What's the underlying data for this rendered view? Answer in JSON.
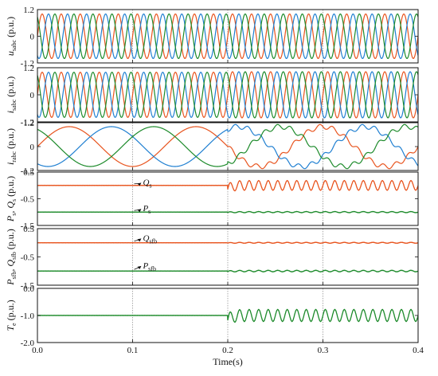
{
  "chart_data": {
    "type": "line",
    "xlabel": "Time(s)",
    "xlim": [
      0.0,
      0.4
    ],
    "xticks": [
      "0.0",
      "0.1",
      "0.2",
      "0.3",
      "0.4"
    ],
    "xtick_values": [
      0.0,
      0.1,
      0.2,
      0.3,
      0.4
    ],
    "grid": "vertical dotted lines at x ticks",
    "colors": {
      "phase_a": "#e8541e",
      "phase_b": "#1f7fd1",
      "phase_c": "#1c8a2a",
      "active": "#1c8a2a",
      "reactive": "#e8541e",
      "torque": "#1c8a2a"
    },
    "panels": [
      {
        "id": "uabc",
        "ylabel": {
          "main": "u",
          "sub": "sabc",
          "unit": " (p.u.)"
        },
        "ylim": [
          -1.2,
          1.2
        ],
        "yticks": [
          "1.2",
          "0",
          "-1.2"
        ],
        "ytick_values": [
          1.2,
          0,
          -1.2
        ],
        "series": [
          {
            "kind": "sine3",
            "amplitude": 1.0,
            "frequency_hz": 50,
            "phase_colors": [
              "phase_a",
              "phase_b",
              "phase_c"
            ]
          }
        ]
      },
      {
        "id": "isabc",
        "ylabel": {
          "main": "i",
          "sub": "sabc",
          "unit": " (p.u.)"
        },
        "ylim": [
          -1.2,
          1.2
        ],
        "yticks": [
          "1.2",
          "0",
          "-1.2"
        ],
        "ytick_values": [
          1.2,
          0,
          -1.2
        ],
        "series": [
          {
            "kind": "sine3",
            "amplitude": 1.0,
            "frequency_hz": 50,
            "amplitude_after": 1.02,
            "change_at": 0.2,
            "phase_colors": [
              "phase_a",
              "phase_b",
              "phase_c"
            ]
          }
        ]
      },
      {
        "id": "irabc",
        "ylabel": {
          "main": "i",
          "sub": "rabc",
          "unit": " (p.u.)"
        },
        "ylim": [
          -1.2,
          1.2
        ],
        "yticks": [
          "1.2",
          "0",
          "-1.2"
        ],
        "ytick_values": [
          1.2,
          0,
          -1.2
        ],
        "series": [
          {
            "kind": "sine3",
            "amplitude": 1.0,
            "frequency_hz": 7.5,
            "change_at": 0.2,
            "harmonic_amplitude_after": 0.12,
            "harmonic_order_after": 10,
            "phase_colors": [
              "phase_a",
              "phase_b",
              "phase_c"
            ]
          }
        ]
      },
      {
        "id": "psqs",
        "ylabel": {
          "main": "P",
          "sub": "s",
          "mid": " Q",
          "sub2": "s",
          "unit": " (p.u.)"
        },
        "ylim": [
          -1.5,
          0.5
        ],
        "yticks": [
          "0.5",
          "-0.5",
          "-1.5"
        ],
        "ytick_values": [
          0.5,
          -0.5,
          -1.5
        ],
        "series": [
          {
            "name": "Q",
            "sub": "s",
            "color": "reactive",
            "level": 0.0,
            "osc_after": 0.18,
            "osc_freq_hz": 100,
            "change_at": 0.2,
            "label_x": 0.11,
            "label_y": 0.1
          },
          {
            "name": "P",
            "sub": "s",
            "color": "active",
            "level": -1.0,
            "osc_after": 0.02,
            "osc_freq_hz": 100,
            "change_at": 0.2,
            "label_x": 0.11,
            "label_y": -0.88
          }
        ]
      },
      {
        "id": "psfbqsfb",
        "ylabel": {
          "main": "P",
          "sub": "sfb",
          "mid": " Q",
          "sub2": "sfb",
          "unit": " (p.u.)"
        },
        "ylim": [
          -1.5,
          0.5
        ],
        "yticks": [
          "0.5",
          "-0.5",
          "-1.5"
        ],
        "ytick_values": [
          0.5,
          -0.5,
          -1.5
        ],
        "series": [
          {
            "name": "Q",
            "sub": "sfb",
            "color": "reactive",
            "level": 0.0,
            "osc_after": 0.015,
            "osc_freq_hz": 100,
            "change_at": 0.2,
            "label_x": 0.11,
            "label_y": 0.15
          },
          {
            "name": "P",
            "sub": "sfb",
            "color": "active",
            "level": -1.0,
            "osc_after": 0.025,
            "osc_freq_hz": 100,
            "change_at": 0.2,
            "label_x": 0.11,
            "label_y": -0.82
          }
        ]
      },
      {
        "id": "te",
        "ylabel": {
          "main": "T",
          "sub": "e",
          "unit": " (p.u.)"
        },
        "ylim": [
          -2.0,
          0.0
        ],
        "yticks": [
          "0.0",
          "-1.0",
          "-2.0"
        ],
        "ytick_values": [
          0.0,
          -1.0,
          -2.0
        ],
        "series": [
          {
            "name": "T",
            "sub": "e",
            "color": "torque",
            "level": -1.0,
            "osc_after": 0.22,
            "osc_freq_hz": 100,
            "change_at": 0.2
          }
        ]
      }
    ]
  }
}
